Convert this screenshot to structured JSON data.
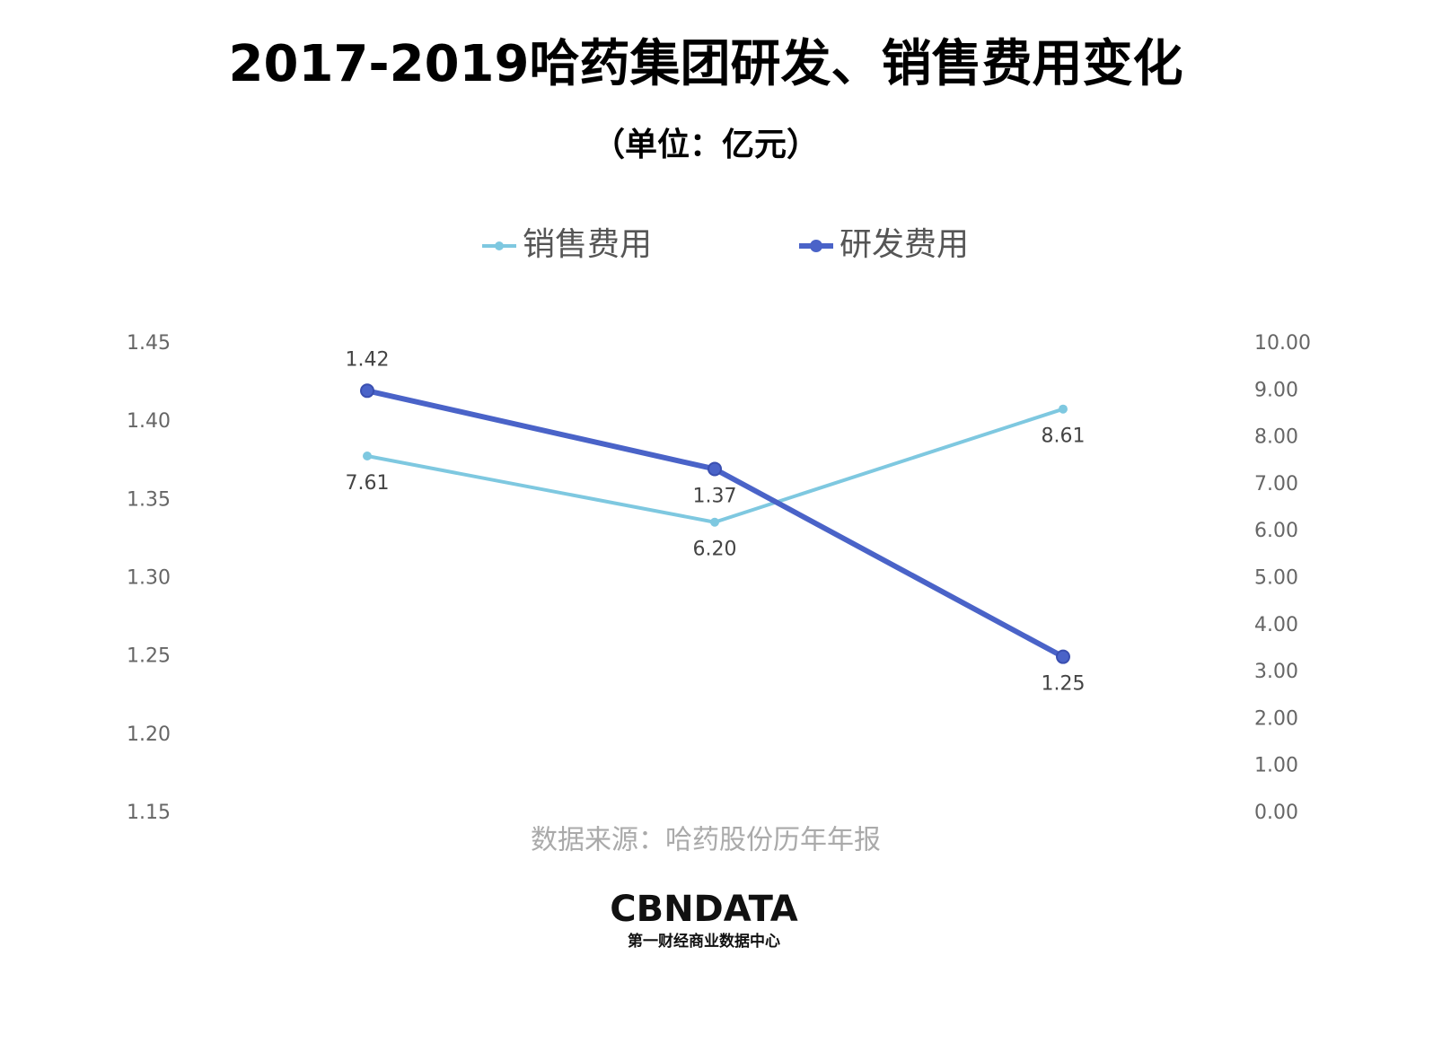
{
  "chart_data": {
    "type": "line",
    "title": "2017-2019哈药集团研发、销售费用变化",
    "subtitle": "（单位：亿元）",
    "categories": [
      null,
      null,
      null
    ],
    "series": [
      {
        "name": "销售费用",
        "color": "#7ec8e0",
        "axis": "y2",
        "values": [
          7.61,
          6.2,
          8.61
        ],
        "value_labels": [
          "7.61",
          "6.20",
          "8.61"
        ]
      },
      {
        "name": "研发费用",
        "color": "#4a63c8",
        "axis": "y",
        "values": [
          1.42,
          1.37,
          1.25
        ]
      }
    ],
    "ylim": [
      1.15,
      1.45
    ],
    "yticks": [
      1.15,
      {
        "value": 1.2,
        "label": "1.20"
      },
      1.25,
      {
        "value": 1.3,
        "label": "1.30"
      },
      1.35,
      {
        "value": 1.4,
        "label": "1.40"
      },
      1.45
    ],
    "y2lim": [
      0,
      10
    ],
    "y2ticks": [
      {
        "value": 0,
        "label": "0.00"
      },
      {
        "value": 1,
        "label": "1.00"
      },
      {
        "value": 2,
        "label": "2.00"
      },
      {
        "value": 3,
        "label": "3.00"
      },
      {
        "value": 4,
        "label": "4.00"
      },
      {
        "value": 5,
        "label": "5.00"
      },
      {
        "value": 6,
        "label": "6.00"
      },
      {
        "value": 7,
        "label": "7.00"
      },
      {
        "value": 8,
        "label": "8.00"
      },
      {
        "value": 9,
        "label": "9.00"
      },
      {
        "value": 10,
        "label": "10.00"
      }
    ],
    "grid": false,
    "legend": "top",
    "source": "数据来源：哈药股份历年年报",
    "logo": {
      "text": "CBNDATA",
      "subtitle": "第一财经商业数据中心"
    }
  }
}
